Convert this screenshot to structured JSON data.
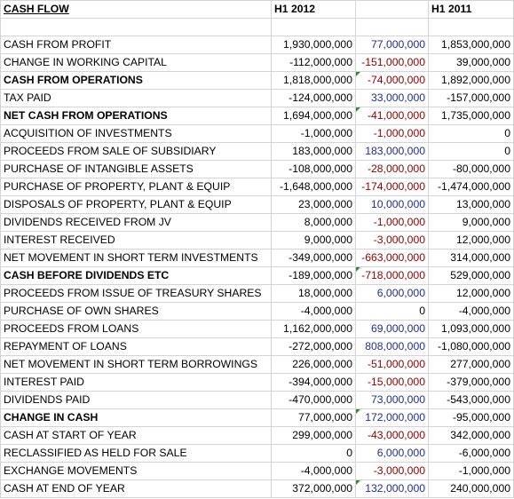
{
  "header": {
    "title": "CASH FLOW",
    "col_h1_2012": "H1 2012",
    "col_diff": "",
    "col_h1_2011": "H1 2011"
  },
  "rows": [
    {
      "label": "CASH FROM PROFIT",
      "h1_2012": "1,930,000,000",
      "diff": "77,000,000",
      "h1_2011": "1,853,000,000",
      "bold": false,
      "sign": "pos"
    },
    {
      "label": "CHANGE IN WORKING CAPITAL",
      "h1_2012": "-112,000,000",
      "diff": "-151,000,000",
      "h1_2011": "39,000,000",
      "bold": false,
      "sign": "neg"
    },
    {
      "label": "CASH FROM OPERATIONS",
      "h1_2012": "1,818,000,000",
      "diff": "-74,000,000",
      "h1_2011": "1,892,000,000",
      "bold": true,
      "sign": "neg",
      "flag": true
    },
    {
      "label": "TAX PAID",
      "h1_2012": "-124,000,000",
      "diff": "33,000,000",
      "h1_2011": "-157,000,000",
      "bold": false,
      "sign": "pos"
    },
    {
      "label": "NET CASH FROM OPERATIONS",
      "h1_2012": "1,694,000,000",
      "diff": "-41,000,000",
      "h1_2011": "1,735,000,000",
      "bold": true,
      "sign": "neg",
      "flag": true
    },
    {
      "label": "ACQUISITION OF INVESTMENTS",
      "h1_2012": "-1,000,000",
      "diff": "-1,000,000",
      "h1_2011": "0",
      "bold": false,
      "sign": "neg"
    },
    {
      "label": "PROCEEDS FROM SALE OF SUBSIDIARY",
      "h1_2012": "183,000,000",
      "diff": "183,000,000",
      "h1_2011": "0",
      "bold": false,
      "sign": "pos"
    },
    {
      "label": "PURCHASE OF INTANGIBLE ASSETS",
      "h1_2012": "-108,000,000",
      "diff": "-28,000,000",
      "h1_2011": "-80,000,000",
      "bold": false,
      "sign": "neg"
    },
    {
      "label": "PURCHASE OF PROPERTY, PLANT & EQUIP",
      "h1_2012": "-1,648,000,000",
      "diff": "-174,000,000",
      "h1_2011": "-1,474,000,000",
      "bold": false,
      "sign": "neg"
    },
    {
      "label": "DISPOSALS OF PROPERTY, PLANT & EQUIP",
      "h1_2012": "23,000,000",
      "diff": "10,000,000",
      "h1_2011": "13,000,000",
      "bold": false,
      "sign": "pos"
    },
    {
      "label": "DIVIDENDS RECEIVED FROM JV",
      "h1_2012": "8,000,000",
      "diff": "-1,000,000",
      "h1_2011": "9,000,000",
      "bold": false,
      "sign": "neg"
    },
    {
      "label": "INTEREST RECEIVED",
      "h1_2012": "9,000,000",
      "diff": "-3,000,000",
      "h1_2011": "12,000,000",
      "bold": false,
      "sign": "neg"
    },
    {
      "label": "NET MOVEMENT IN SHORT TERM INVESTMENTS",
      "h1_2012": "-349,000,000",
      "diff": "-663,000,000",
      "h1_2011": "314,000,000",
      "bold": false,
      "sign": "neg"
    },
    {
      "label": "CASH BEFORE DIVIDENDS ETC",
      "h1_2012": "-189,000,000",
      "diff": "-718,000,000",
      "h1_2011": "529,000,000",
      "bold": true,
      "sign": "neg",
      "flag": true
    },
    {
      "label": "PROCEEDS FROM ISSUE OF TREASURY SHARES",
      "h1_2012": "18,000,000",
      "diff": "6,000,000",
      "h1_2011": "12,000,000",
      "bold": false,
      "sign": "pos"
    },
    {
      "label": "PURCHASE OF OWN SHARES",
      "h1_2012": "-4,000,000",
      "diff": "0",
      "h1_2011": "-4,000,000",
      "bold": false,
      "sign": "zero"
    },
    {
      "label": "PROCEEDS FROM LOANS",
      "h1_2012": "1,162,000,000",
      "diff": "69,000,000",
      "h1_2011": "1,093,000,000",
      "bold": false,
      "sign": "pos"
    },
    {
      "label": "REPAYMENT OF LOANS",
      "h1_2012": "-272,000,000",
      "diff": "808,000,000",
      "h1_2011": "-1,080,000,000",
      "bold": false,
      "sign": "pos"
    },
    {
      "label": "NET MOVEMENT IN SHORT TERM BORROWINGS",
      "h1_2012": "226,000,000",
      "diff": "-51,000,000",
      "h1_2011": "277,000,000",
      "bold": false,
      "sign": "neg"
    },
    {
      "label": "INTEREST PAID",
      "h1_2012": "-394,000,000",
      "diff": "-15,000,000",
      "h1_2011": "-379,000,000",
      "bold": false,
      "sign": "neg"
    },
    {
      "label": "DIVIDENDS PAID",
      "h1_2012": "-470,000,000",
      "diff": "73,000,000",
      "h1_2011": "-543,000,000",
      "bold": false,
      "sign": "pos"
    },
    {
      "label": "CHANGE IN CASH",
      "h1_2012": "77,000,000",
      "diff": "172,000,000",
      "h1_2011": "-95,000,000",
      "bold": true,
      "sign": "pos",
      "flag": true
    },
    {
      "label": "CASH AT START OF YEAR",
      "h1_2012": "299,000,000",
      "diff": "-43,000,000",
      "h1_2011": "342,000,000",
      "bold": false,
      "sign": "neg"
    },
    {
      "label": "RECLASSIFIED AS HELD FOR SALE",
      "h1_2012": "0",
      "diff": "6,000,000",
      "h1_2011": "-6,000,000",
      "bold": false,
      "sign": "pos"
    },
    {
      "label": "EXCHANGE MOVEMENTS",
      "h1_2012": "-4,000,000",
      "diff": "-3,000,000",
      "h1_2011": "-1,000,000",
      "bold": false,
      "sign": "neg"
    },
    {
      "label": "CASH AT END OF YEAR",
      "h1_2012": "372,000,000",
      "diff": "132,000,000",
      "h1_2011": "240,000,000",
      "bold": false,
      "sign": "pos",
      "flag": true
    }
  ],
  "colors": {
    "positive_diff": "#1f2f8f",
    "negative_diff": "#8b0000",
    "grid_line": "#d4d4d4",
    "flag": "#2e8b2e"
  }
}
